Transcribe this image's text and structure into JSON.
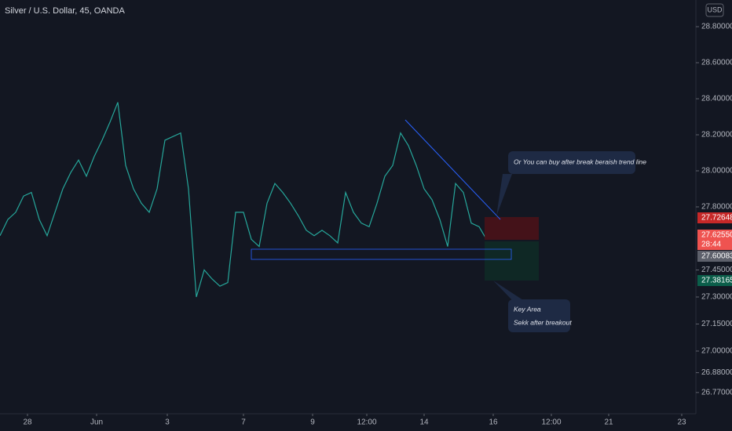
{
  "header": {
    "title": "Silver / U.S. Dollar, 45, OANDA",
    "currency": "USD"
  },
  "chart_data": {
    "type": "line",
    "color": "#26a69a",
    "x": [
      0,
      1,
      2,
      3,
      4,
      5,
      6,
      7,
      8,
      9,
      10,
      11,
      12,
      13,
      14,
      15,
      16,
      17,
      18,
      19,
      20,
      21,
      22,
      23,
      24,
      25,
      26,
      27,
      28,
      29,
      30,
      31,
      32,
      33,
      34,
      35,
      36,
      37,
      38,
      39,
      40,
      41,
      42,
      43,
      44,
      45,
      46,
      47,
      48,
      49,
      50,
      51,
      52,
      53,
      54,
      55,
      56,
      57,
      58,
      59,
      60,
      61,
      61.8
    ],
    "values": [
      27.64,
      27.73,
      27.77,
      27.86,
      27.88,
      27.73,
      27.64,
      27.77,
      27.9,
      27.99,
      28.06,
      27.97,
      28.08,
      28.17,
      28.27,
      28.38,
      28.03,
      27.9,
      27.82,
      27.77,
      27.9,
      28.17,
      28.19,
      28.21,
      27.9,
      27.3,
      27.45,
      27.4,
      27.36,
      27.38,
      27.77,
      27.77,
      27.62,
      27.58,
      27.82,
      27.93,
      27.88,
      27.82,
      27.75,
      27.67,
      27.64,
      27.67,
      27.64,
      27.6,
      27.88,
      27.77,
      27.71,
      27.69,
      27.82,
      27.97,
      28.03,
      28.21,
      28.14,
      28.03,
      27.9,
      27.84,
      27.73,
      27.58,
      27.93,
      27.88,
      27.71,
      27.69,
      27.63
    ],
    "xlim": [
      0,
      88
    ],
    "xticks": [
      {
        "value": 3.5,
        "label": "28"
      },
      {
        "value": 12.3,
        "label": "Jun"
      },
      {
        "value": 21.3,
        "label": "3"
      },
      {
        "value": 31,
        "label": "7"
      },
      {
        "value": 39.8,
        "label": "9"
      },
      {
        "value": 46.7,
        "label": "12:00"
      },
      {
        "value": 54,
        "label": "14"
      },
      {
        "value": 62.8,
        "label": "16"
      },
      {
        "value": 70.2,
        "label": "12:00"
      },
      {
        "value": 77.5,
        "label": "21"
      },
      {
        "value": 86.8,
        "label": "23"
      }
    ],
    "ylim": [
      26.652,
      28.948
    ],
    "yticks": [
      {
        "value": 28.8,
        "label": "28.80000"
      },
      {
        "value": 28.6,
        "label": "28.60000"
      },
      {
        "value": 28.4,
        "label": "28.40000"
      },
      {
        "value": 28.2,
        "label": "28.20000"
      },
      {
        "value": 28.0,
        "label": "28.00000"
      },
      {
        "value": 27.8,
        "label": "27.80000"
      },
      {
        "value": 27.45,
        "label": "27.45000"
      },
      {
        "value": 27.3,
        "label": "27.30000"
      },
      {
        "value": 27.15,
        "label": "27.15000"
      },
      {
        "value": 27.0,
        "label": "27.00000"
      },
      {
        "value": 26.88,
        "label": "26.88000"
      },
      {
        "value": 26.77,
        "label": "26.77000"
      }
    ],
    "price_tags": [
      {
        "label": "27.72648",
        "color": "#c62828"
      },
      {
        "label": "27.62550",
        "color": "#ef5350"
      },
      {
        "label": "28:44",
        "color": "#ef5350"
      },
      {
        "label": "27.60083",
        "color": "#5d606b"
      },
      {
        "label": "27.38165",
        "color": "#0b5e4a"
      }
    ],
    "annotations": [
      "Or You can buy after break beraish trend line",
      "Key Area",
      "Sekk after breakout"
    ]
  }
}
